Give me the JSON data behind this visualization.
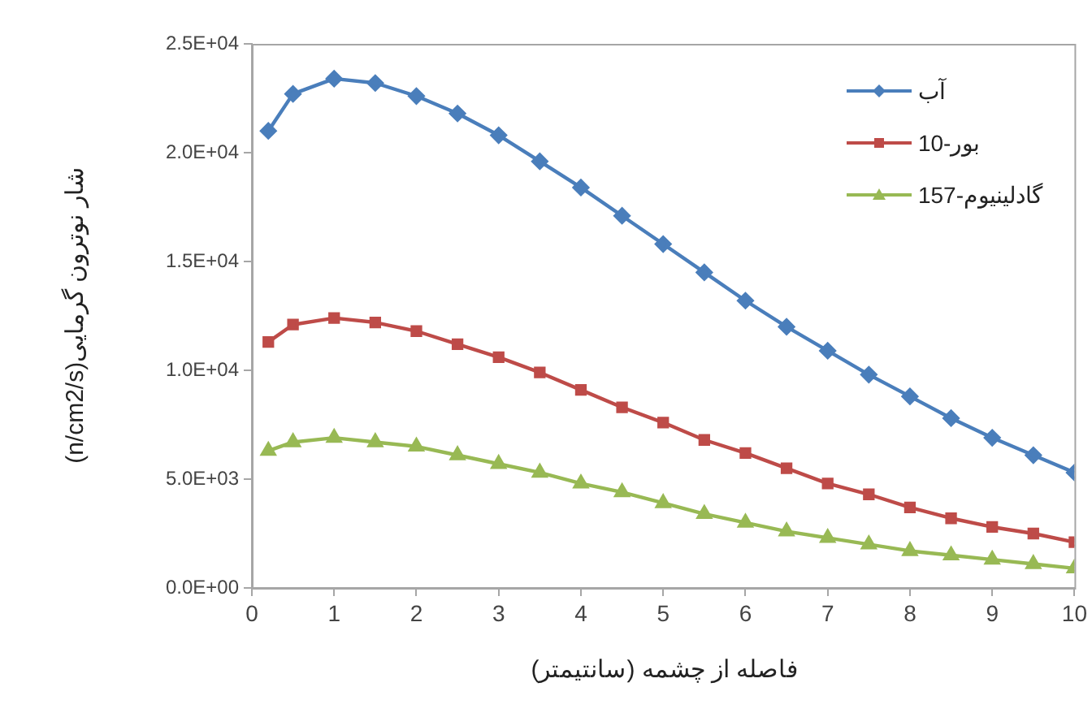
{
  "chart_data": {
    "type": "line",
    "xlabel": "فاصله از چشمه (سانتیمتر)",
    "ylabel": "شار نوترون گرمایی(n/cm2/s)",
    "x": [
      0.2,
      0.5,
      1,
      1.5,
      2,
      2.5,
      3,
      3.5,
      4,
      4.5,
      5,
      5.5,
      6,
      6.5,
      7,
      7.5,
      8,
      8.5,
      9,
      9.5,
      10
    ],
    "series": [
      {
        "name": "آب",
        "color": "#4a7ebb",
        "marker": "diamond",
        "values": [
          21000,
          22700,
          23400,
          23200,
          22600,
          21800,
          20800,
          19600,
          18400,
          17100,
          15800,
          14500,
          13200,
          12000,
          10900,
          9800,
          8800,
          7800,
          6900,
          6100,
          5300
        ]
      },
      {
        "name": "بور-10",
        "color": "#be4b48",
        "marker": "square",
        "values": [
          11300,
          12100,
          12400,
          12200,
          11800,
          11200,
          10600,
          9900,
          9100,
          8300,
          7600,
          6800,
          6200,
          5500,
          4800,
          4300,
          3700,
          3200,
          2800,
          2500,
          2100
        ]
      },
      {
        "name": "گادلینیوم-157",
        "color": "#98b954",
        "marker": "triangle",
        "values": [
          6300,
          6700,
          6900,
          6700,
          6500,
          6100,
          5700,
          5300,
          4800,
          4400,
          3900,
          3400,
          3000,
          2600,
          2300,
          2000,
          1700,
          1500,
          1300,
          1100,
          900
        ]
      }
    ],
    "xlim": [
      0,
      10
    ],
    "xticks": [
      0,
      1,
      2,
      3,
      4,
      5,
      6,
      7,
      8,
      9,
      10
    ],
    "ylim": [
      0,
      25000
    ],
    "yticks": [
      {
        "value": 0,
        "label": "0.0E+00"
      },
      {
        "value": 5000,
        "label": "5.0E+03"
      },
      {
        "value": 10000,
        "label": "1.0E+04"
      },
      {
        "value": 15000,
        "label": "1.5E+04"
      },
      {
        "value": 20000,
        "label": "2.0E+04"
      },
      {
        "value": 25000,
        "label": "2.5E+04"
      }
    ],
    "grid": false,
    "legend": "top right",
    "line_style": "solid"
  }
}
